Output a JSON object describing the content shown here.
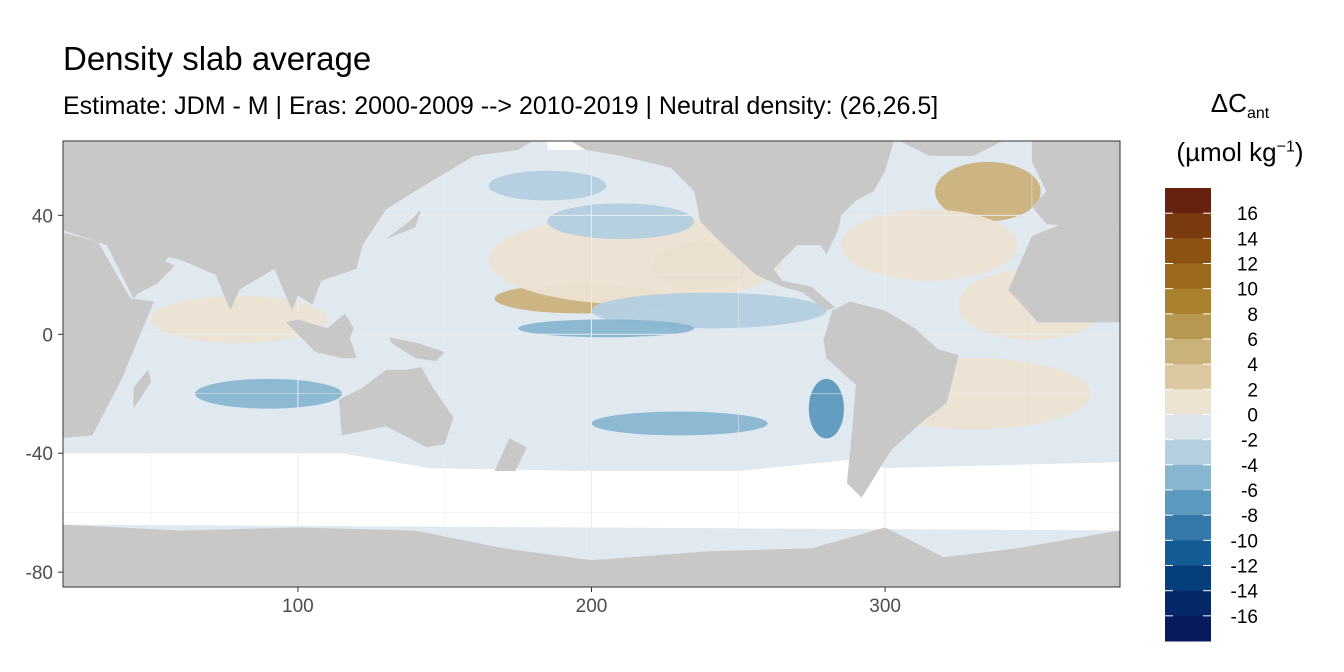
{
  "chart_data": {
    "type": "heatmap",
    "title": "Density slab average",
    "subtitle": "Estimate: JDM - M | Eras: 2000-2009 --> 2010-2019 | Neutral density: (26,26.5]",
    "xlabel": "",
    "ylabel": "",
    "x_ticks": [
      "100",
      "200",
      "300"
    ],
    "y_ticks": [
      "40",
      "0",
      "-40",
      "-80"
    ],
    "x_tick_values": [
      100,
      200,
      300
    ],
    "y_tick_values": [
      40,
      0,
      -40,
      -80
    ],
    "xlim": [
      20,
      380
    ],
    "ylim": [
      -85,
      65
    ],
    "grid": true,
    "legend": {
      "title_main": "ΔC",
      "title_sub": "ant",
      "title_unit_open": "(µmol kg",
      "title_unit_exp": "−1",
      "title_unit_close": ")",
      "placement": "right",
      "labels": [
        "16",
        "14",
        "12",
        "10",
        "8",
        "6",
        "4",
        "2",
        "0",
        "-2",
        "-4",
        "-6",
        "-8",
        "-10",
        "-12",
        "-14",
        "-16"
      ],
      "bin_colors": [
        "#67220f",
        "#7a3a10",
        "#8c5212",
        "#9b6a1c",
        "#a9812f",
        "#b89850",
        "#cab27b",
        "#dcc9a2",
        "#ece3d3",
        "#dce6ec",
        "#b3cfe0",
        "#88b6d1",
        "#5c99bf",
        "#3479aa",
        "#145c96",
        "#063e7b",
        "#05286b",
        "#081a5e"
      ]
    },
    "colors": {
      "land": "#c8c8c8",
      "ocean_base": "#dfe9ef",
      "no_data": "#ffffff",
      "grid": "#ebebeb",
      "panel_border": "#333333"
    },
    "regions": [
      {
        "type": "ellipse",
        "lon": 197,
        "lat": 12,
        "rlon": 30,
        "rlat": 5,
        "value": 5
      },
      {
        "type": "ellipse",
        "lon": 237,
        "lat": 23,
        "rlon": 16,
        "rlat": 8,
        "value": 5
      },
      {
        "type": "ellipse",
        "lon": 335,
        "lat": 48,
        "rlon": 18,
        "rlat": 10,
        "value": 5
      },
      {
        "type": "ellipse",
        "lon": 315,
        "lat": 30,
        "rlon": 30,
        "rlat": 12,
        "value": 1
      },
      {
        "type": "ellipse",
        "lon": 350,
        "lat": 10,
        "rlon": 25,
        "rlat": 12,
        "value": 1
      },
      {
        "type": "ellipse",
        "lon": 330,
        "lat": -20,
        "rlon": 40,
        "rlat": 12,
        "value": 1
      },
      {
        "type": "ellipse",
        "lon": 215,
        "lat": 25,
        "rlon": 50,
        "rlat": 15,
        "value": 1
      },
      {
        "type": "ellipse",
        "lon": 80,
        "lat": 5,
        "rlon": 30,
        "rlat": 8,
        "value": 1
      },
      {
        "type": "ellipse",
        "lon": 240,
        "lat": 8,
        "rlon": 40,
        "rlat": 6,
        "value": -2.5
      },
      {
        "type": "ellipse",
        "lon": 205,
        "lat": 2,
        "rlon": 30,
        "rlat": 3,
        "value": -5
      },
      {
        "type": "ellipse",
        "lon": 90,
        "lat": -20,
        "rlon": 25,
        "rlat": 5,
        "value": -5
      },
      {
        "type": "ellipse",
        "lon": 230,
        "lat": -30,
        "rlon": 30,
        "rlat": 4,
        "value": -5
      },
      {
        "type": "ellipse",
        "lon": 210,
        "lat": 38,
        "rlon": 25,
        "rlat": 6,
        "value": -3
      },
      {
        "type": "ellipse",
        "lon": 185,
        "lat": 50,
        "rlon": 20,
        "rlat": 5,
        "value": -3
      },
      {
        "type": "ellipse",
        "lon": 280,
        "lat": -25,
        "rlon": 6,
        "rlat": 10,
        "value": -6
      }
    ],
    "land_polygons": [
      {
        "name": "africa",
        "points": [
          [
            -18,
            15
          ],
          [
            -10,
            35
          ],
          [
            10,
            37
          ],
          [
            32,
            31
          ],
          [
            43,
            12
          ],
          [
            51,
            11
          ],
          [
            40,
            -15
          ],
          [
            30,
            -34
          ],
          [
            18,
            -35
          ],
          [
            12,
            -5
          ],
          [
            8,
            4
          ],
          [
            -8,
            4
          ],
          [
            -18,
            15
          ]
        ]
      },
      {
        "name": "eurasia",
        "points": [
          [
            20,
            65
          ],
          [
            180,
            65
          ],
          [
            175,
            62
          ],
          [
            160,
            60
          ],
          [
            143,
            50
          ],
          [
            130,
            42
          ],
          [
            122,
            30
          ],
          [
            120,
            22
          ],
          [
            108,
            18
          ],
          [
            105,
            10
          ],
          [
            100,
            13
          ],
          [
            98,
            8
          ],
          [
            92,
            22
          ],
          [
            80,
            15
          ],
          [
            77,
            8
          ],
          [
            72,
            20
          ],
          [
            60,
            25
          ],
          [
            56,
            26
          ],
          [
            44,
            12
          ],
          [
            35,
            30
          ],
          [
            20,
            35
          ],
          [
            20,
            65
          ]
        ]
      },
      {
        "name": "arabia",
        "points": [
          [
            36,
            30
          ],
          [
            44,
            13
          ],
          [
            52,
            17
          ],
          [
            58,
            23
          ],
          [
            50,
            27
          ],
          [
            36,
            30
          ]
        ]
      },
      {
        "name": "australia",
        "points": [
          [
            114,
            -22
          ],
          [
            122,
            -18
          ],
          [
            130,
            -12
          ],
          [
            137,
            -12
          ],
          [
            142,
            -11
          ],
          [
            146,
            -18
          ],
          [
            153,
            -28
          ],
          [
            150,
            -37
          ],
          [
            144,
            -38
          ],
          [
            138,
            -35
          ],
          [
            130,
            -31
          ],
          [
            115,
            -34
          ],
          [
            114,
            -22
          ]
        ]
      },
      {
        "name": "indonesia",
        "points": [
          [
            96,
            4
          ],
          [
            106,
            -6
          ],
          [
            115,
            -8
          ],
          [
            120,
            -8
          ],
          [
            118,
            -2
          ],
          [
            110,
            2
          ],
          [
            100,
            5
          ],
          [
            96,
            4
          ]
        ]
      },
      {
        "name": "borneo",
        "points": [
          [
            109,
            1
          ],
          [
            116,
            7
          ],
          [
            119,
            2
          ],
          [
            117,
            -3
          ],
          [
            110,
            -2
          ],
          [
            109,
            1
          ]
        ]
      },
      {
        "name": "new_guinea",
        "points": [
          [
            131,
            -1
          ],
          [
            141,
            -3
          ],
          [
            150,
            -6
          ],
          [
            147,
            -9
          ],
          [
            140,
            -8
          ],
          [
            132,
            -3
          ],
          [
            131,
            -1
          ]
        ]
      },
      {
        "name": "north_america",
        "points": [
          [
            193,
            65
          ],
          [
            303,
            65
          ],
          [
            300,
            55
          ],
          [
            296,
            48
          ],
          [
            290,
            45
          ],
          [
            285,
            40
          ],
          [
            284,
            35
          ],
          [
            280,
            27
          ],
          [
            278,
            30
          ],
          [
            270,
            30
          ],
          [
            262,
            22
          ],
          [
            265,
            18
          ],
          [
            275,
            16
          ],
          [
            283,
            9
          ],
          [
            280,
            8
          ],
          [
            272,
            14
          ],
          [
            265,
            16
          ],
          [
            256,
            20
          ],
          [
            245,
            30
          ],
          [
            237,
            38
          ],
          [
            235,
            48
          ],
          [
            227,
            56
          ],
          [
            210,
            60
          ],
          [
            198,
            62
          ],
          [
            193,
            65
          ]
        ]
      },
      {
        "name": "south_america",
        "points": [
          [
            282,
            8
          ],
          [
            288,
            11
          ],
          [
            300,
            8
          ],
          [
            310,
            2
          ],
          [
            318,
            -5
          ],
          [
            325,
            -7
          ],
          [
            321,
            -23
          ],
          [
            312,
            -30
          ],
          [
            302,
            -39
          ],
          [
            292,
            -55
          ],
          [
            287,
            -50
          ],
          [
            288,
            -40
          ],
          [
            289,
            -30
          ],
          [
            290,
            -17
          ],
          [
            280,
            -8
          ],
          [
            279,
            -2
          ],
          [
            282,
            8
          ]
        ]
      },
      {
        "name": "greenland",
        "points": [
          [
            305,
            65
          ],
          [
            340,
            65
          ],
          [
            330,
            60
          ],
          [
            315,
            60
          ],
          [
            305,
            65
          ]
        ]
      },
      {
        "name": "europe_w",
        "points": [
          [
            350,
            65
          ],
          [
            380,
            65
          ],
          [
            380,
            37
          ],
          [
            370,
            36
          ],
          [
            355,
            37
          ],
          [
            350,
            43
          ],
          [
            355,
            48
          ],
          [
            350,
            58
          ],
          [
            350,
            65
          ]
        ]
      },
      {
        "name": "africa_w",
        "points": [
          [
            342,
            15
          ],
          [
            350,
            33
          ],
          [
            360,
            37
          ],
          [
            380,
            37
          ],
          [
            380,
            4
          ],
          [
            352,
            4
          ],
          [
            342,
            15
          ]
        ]
      },
      {
        "name": "antarctica",
        "points": [
          [
            20,
            -64
          ],
          [
            60,
            -66
          ],
          [
            100,
            -65
          ],
          [
            140,
            -66
          ],
          [
            170,
            -72
          ],
          [
            200,
            -76
          ],
          [
            240,
            -73
          ],
          [
            275,
            -72
          ],
          [
            300,
            -65
          ],
          [
            320,
            -75
          ],
          [
            345,
            -72
          ],
          [
            380,
            -66
          ],
          [
            380,
            -85
          ],
          [
            20,
            -85
          ]
        ]
      },
      {
        "name": "new_zealand",
        "points": [
          [
            172,
            -35
          ],
          [
            178,
            -38
          ],
          [
            174,
            -46
          ],
          [
            167,
            -46
          ],
          [
            172,
            -35
          ]
        ]
      },
      {
        "name": "japan",
        "points": [
          [
            130,
            32
          ],
          [
            140,
            36
          ],
          [
            142,
            42
          ],
          [
            138,
            38
          ],
          [
            130,
            32
          ]
        ]
      },
      {
        "name": "madagascar",
        "points": [
          [
            44,
            -25
          ],
          [
            50,
            -16
          ],
          [
            49,
            -12
          ],
          [
            44,
            -18
          ],
          [
            44,
            -25
          ]
        ]
      }
    ],
    "no_data_regions": [
      {
        "name": "southern_band",
        "points": [
          [
            20,
            -40
          ],
          [
            115,
            -40
          ],
          [
            145,
            -45
          ],
          [
            200,
            -46
          ],
          [
            250,
            -46
          ],
          [
            290,
            -42
          ],
          [
            300,
            -45
          ],
          [
            380,
            -43
          ],
          [
            380,
            -66
          ],
          [
            20,
            -64
          ]
        ]
      },
      {
        "name": "arctic_gap",
        "points": [
          [
            185,
            65
          ],
          [
            300,
            65
          ],
          [
            300,
            62
          ],
          [
            185,
            62
          ]
        ]
      }
    ]
  }
}
